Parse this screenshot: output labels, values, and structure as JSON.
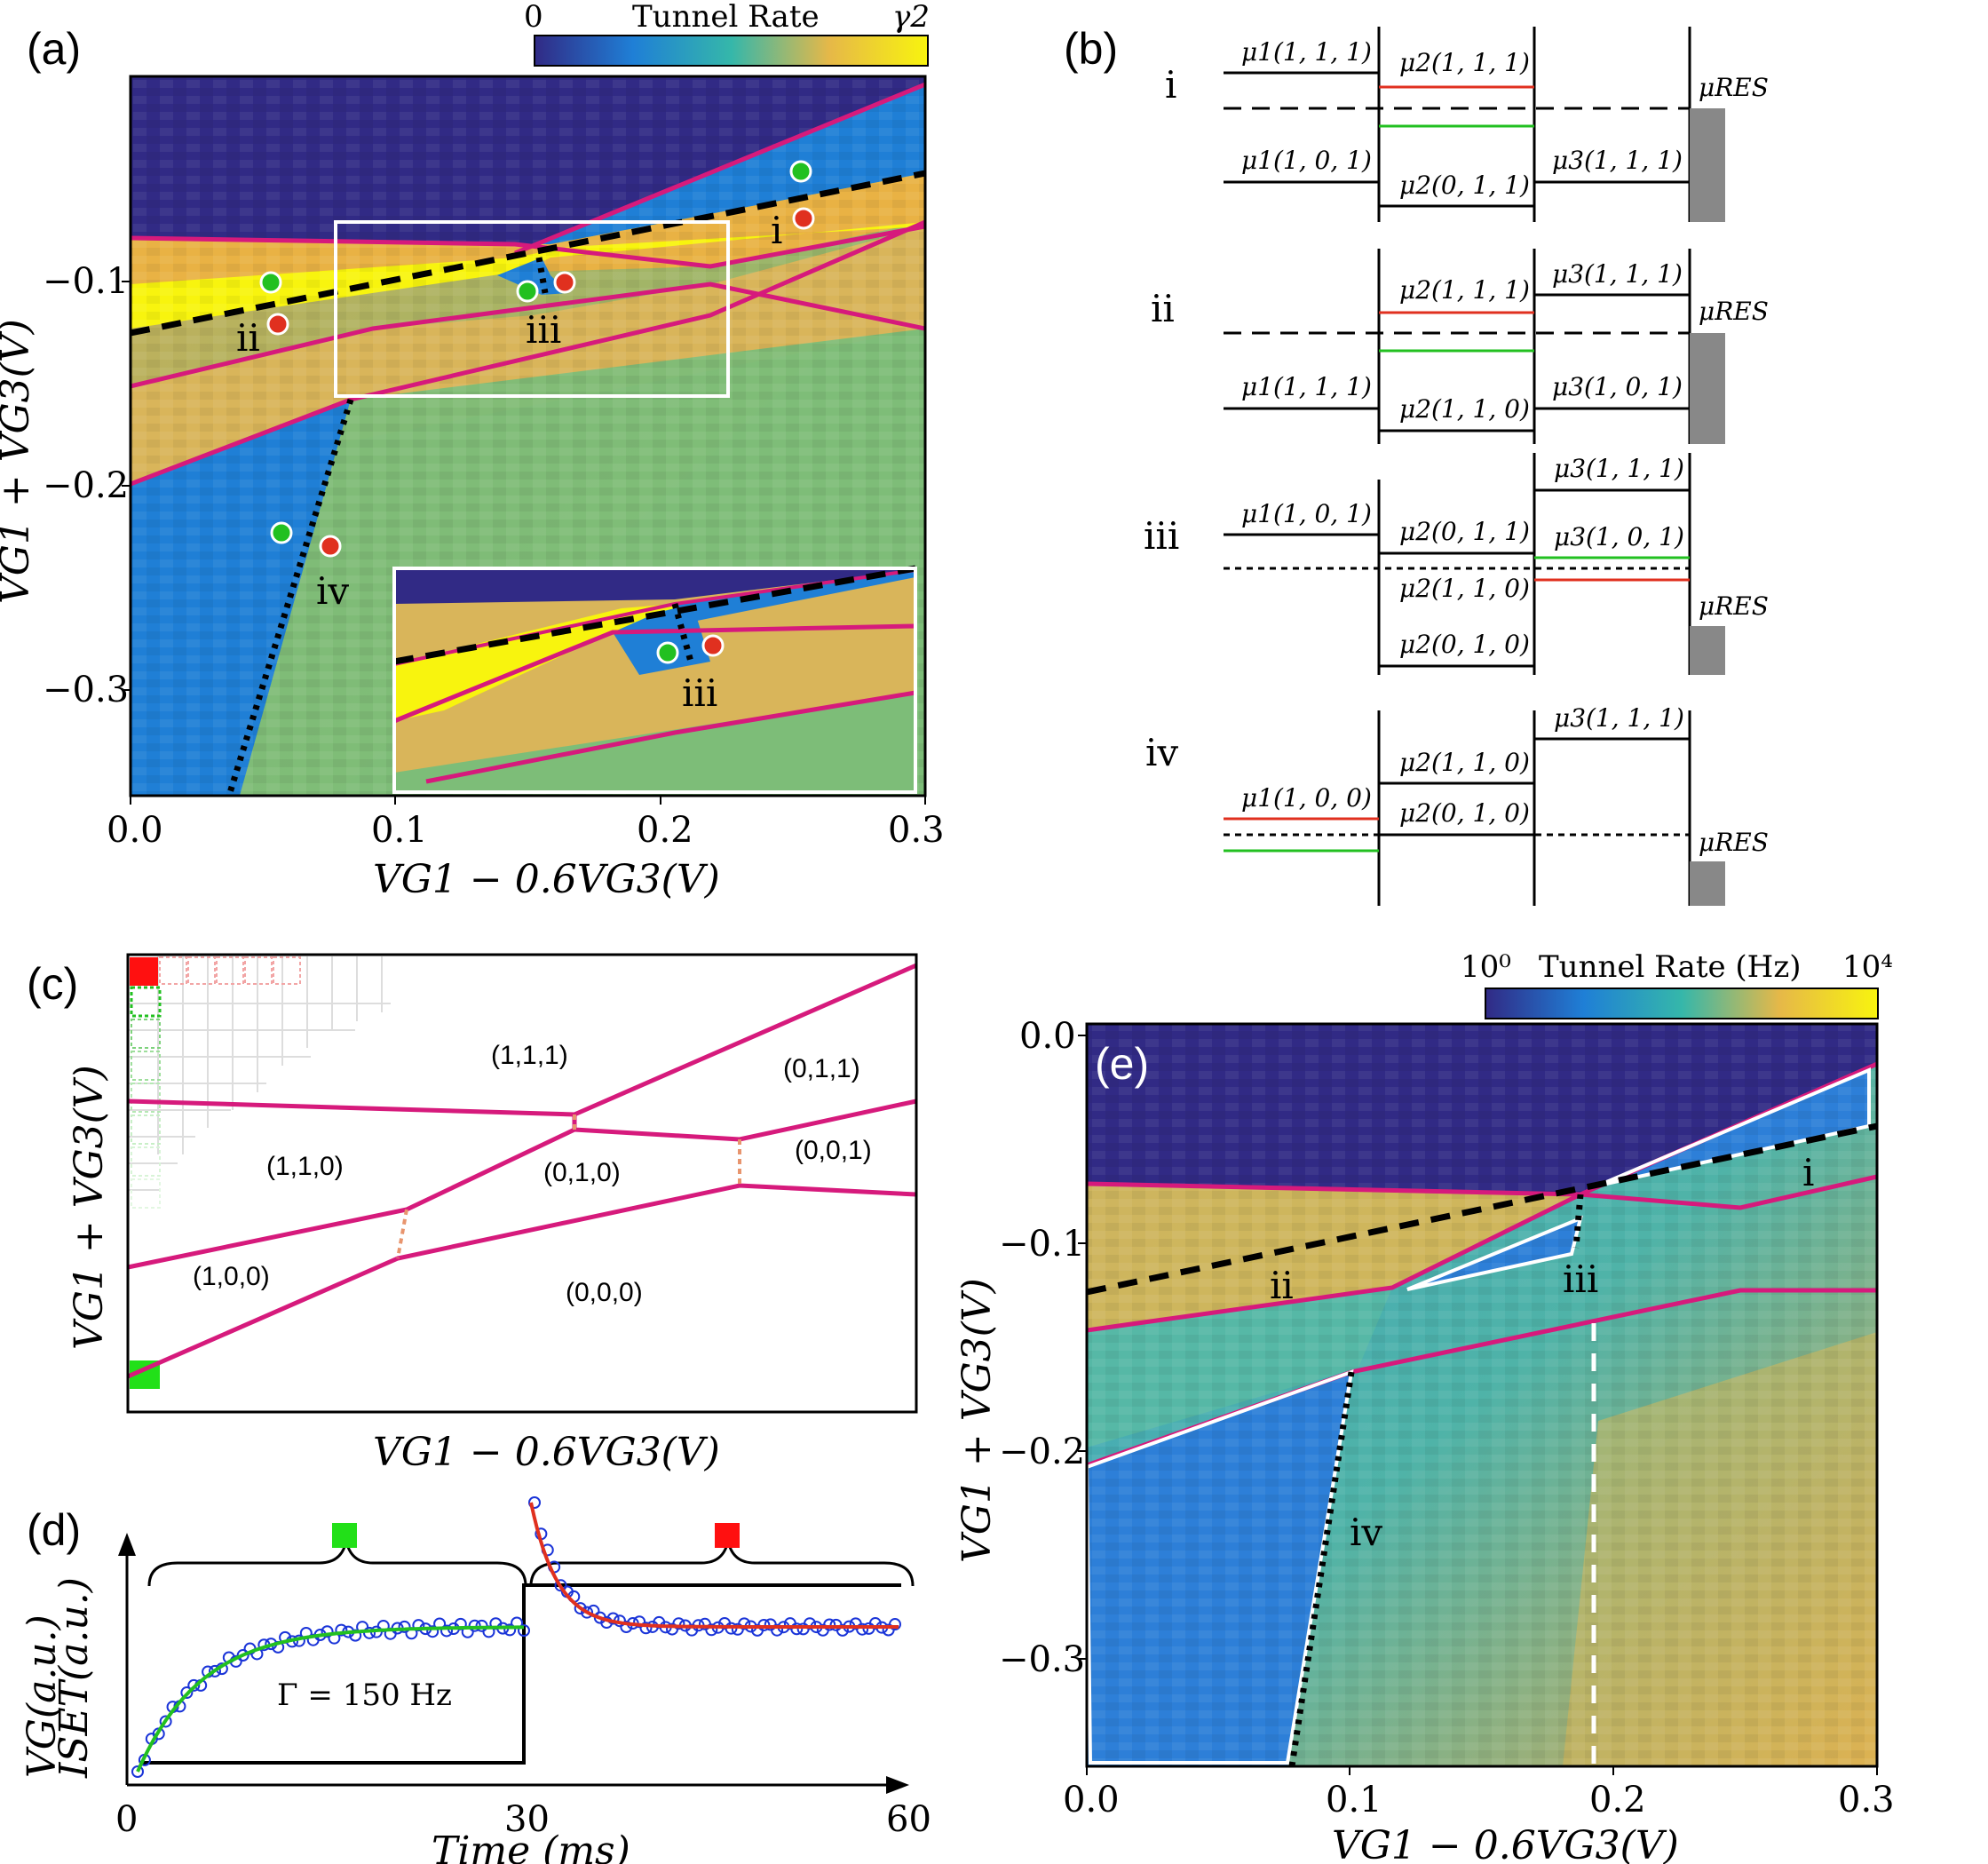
{
  "panel_labels": {
    "a": "(a)",
    "b": "(b)",
    "c": "(c)",
    "d": "(d)",
    "e": "(e)"
  },
  "panel_a": {
    "colorbar": {
      "min": "0",
      "title": "Tunnel Rate",
      "max": "γ2"
    },
    "xticks": [
      "0.0",
      "0.1",
      "0.2",
      "0.3"
    ],
    "yticks": [
      "−0.1",
      "−0.2",
      "−0.3"
    ],
    "xlabel": "VG1 − 0.6VG3(V)",
    "ylabel": "VG1 + VG3(V)",
    "labels": {
      "i": "i",
      "ii": "ii",
      "iii": "iii",
      "iv": "iv",
      "inset_iii": "iii"
    },
    "colors": {
      "background_top": "#312a85",
      "blue": "#1f7fd6",
      "yellow": "#f8f40e",
      "orange": "#e9b244",
      "green": "#7dbd78",
      "magenta": "#d61a7c",
      "dot_green": "#22c020",
      "dot_red": "#e0301f"
    }
  },
  "panel_b": {
    "rows": [
      {
        "roman": "i",
        "labels": [
          "μ1(1, 1, 1)",
          "μ2(1, 1, 1)",
          "μ1(1, 0, 1)",
          "μ2(0, 1, 1)",
          "μ3(1, 1, 1)",
          "μRES"
        ]
      },
      {
        "roman": "ii",
        "labels": [
          "μ2(1, 1, 1)",
          "μ3(1, 1, 1)",
          "μ1(1, 1, 1)",
          "μ2(1, 1, 0)",
          "μ3(1, 0, 1)",
          "μRES"
        ]
      },
      {
        "roman": "iii",
        "labels": [
          "μ3(1, 1, 1)",
          "μ1(1, 0, 1)",
          "μ2(0, 1, 1)",
          "μ3(1, 0, 1)",
          "μ2(1, 1, 0)",
          "μ2(0, 1, 0)",
          "μRES"
        ]
      },
      {
        "roman": "iv",
        "labels": [
          "μ3(1, 1, 1)",
          "μ2(1, 1, 0)",
          "μ1(1, 0, 0)",
          "μ2(0, 1, 0)",
          "μRES"
        ]
      }
    ]
  },
  "panel_c": {
    "xlabel": "VG1 − 0.6VG3(V)",
    "ylabel": "VG1 + VG3(V)",
    "states": [
      "(1,1,1)",
      "(0,1,1)",
      "(1,1,0)",
      "(0,1,0)",
      "(0,0,1)",
      "(1,0,0)",
      "(0,0,0)"
    ]
  },
  "panel_d": {
    "ylabel_vg": "VG(a.u.)",
    "ylabel_iset": "ISET(a.u.)",
    "annotation": "Γ = 150 Hz",
    "xticks": [
      "0",
      "30",
      "60"
    ],
    "xlabel": "Time (ms)"
  },
  "panel_e": {
    "colorbar": {
      "min": "10⁰",
      "title": "Tunnel Rate (Hz)",
      "max": "10⁴"
    },
    "xticks": [
      "0.0",
      "0.1",
      "0.2",
      "0.3"
    ],
    "yticks": [
      "0.0",
      "−0.1",
      "−0.2",
      "−0.3"
    ],
    "xlabel": "VG1 − 0.6VG3(V)",
    "ylabel": "VG1 + VG3(V)",
    "labels": {
      "i": "i",
      "ii": "ii",
      "iii": "iii",
      "iv": "iv"
    }
  }
}
